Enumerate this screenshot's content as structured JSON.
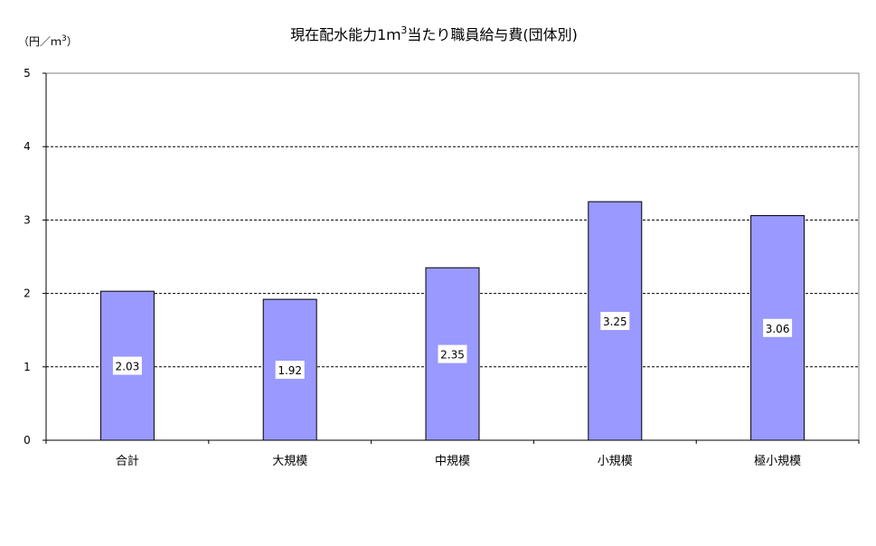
{
  "chart_data": {
    "type": "bar",
    "title": "現在配水能力1m³当たり職員給与費(団体別)",
    "title_parts": {
      "before": "現在配水能力1ｍ",
      "sup": "3",
      "after": "当たり職員給与費(団体別)"
    },
    "ylabel": "（円／ｍ3）",
    "ylabel_parts": {
      "before": "（円／ｍ",
      "sup": "3",
      "after": "）"
    },
    "categories": [
      "合計",
      "大規模",
      "中規模",
      "小規模",
      "極小規模"
    ],
    "values": [
      2.03,
      1.92,
      2.35,
      3.25,
      3.06
    ],
    "value_labels": [
      "2.03",
      "1.92",
      "2.35",
      "3.25",
      "3.06"
    ],
    "ylim": [
      0,
      5
    ],
    "yticks": [
      "0",
      "1",
      "2",
      "3",
      "4",
      "5"
    ],
    "grid": true,
    "colors": {
      "bar": "#9999ff",
      "bar_border": "#000000",
      "grid": "#000000"
    }
  }
}
